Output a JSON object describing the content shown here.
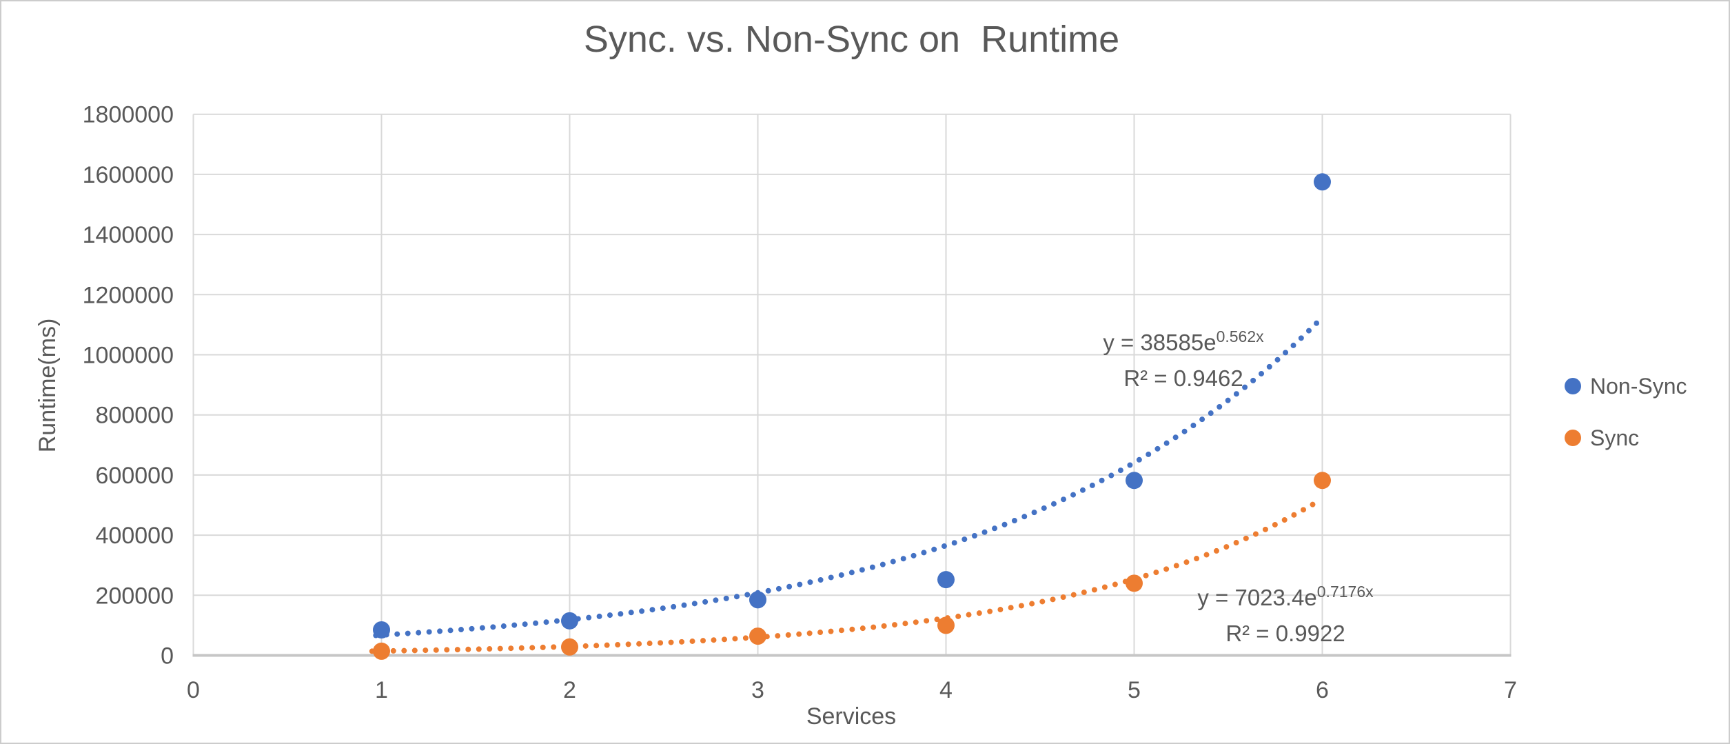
{
  "title": "Sync. vs. Non-Sync on  Runtime",
  "colors": {
    "nonsync": "#4472C4",
    "sync": "#ED7D31",
    "gridline": "#D9D9D9",
    "axis_line": "#C6C6C6",
    "text": "#595959"
  },
  "legend": {
    "position": "right",
    "items": [
      {
        "label": "Non-Sync",
        "color": "#4472C4"
      },
      {
        "label": "Sync",
        "color": "#ED7D31"
      }
    ]
  },
  "annotations": {
    "non_sync": {
      "eq_base": "y = 38585e",
      "eq_exp": "0.562x",
      "r2": "R² = 0.9462"
    },
    "sync": {
      "eq_base": "y = 7023.4e",
      "eq_exp": "0.7176x",
      "r2": "R² = 0.9922"
    }
  },
  "chart_data": {
    "type": "scatter",
    "title": "Sync. vs. Non-Sync on  Runtime",
    "xlabel": "Services",
    "ylabel": "Runtime(ms)",
    "xlim": [
      0,
      7
    ],
    "ylim": [
      0,
      1800000
    ],
    "x_ticks": [
      0,
      1,
      2,
      3,
      4,
      5,
      6,
      7
    ],
    "y_ticks": [
      0,
      200000,
      400000,
      600000,
      800000,
      1000000,
      1200000,
      1400000,
      1600000,
      1800000
    ],
    "grid": true,
    "legend_position": "right",
    "x": [
      1,
      2,
      3,
      4,
      5,
      6
    ],
    "series": [
      {
        "name": "Non-Sync",
        "color": "#4472C4",
        "values": [
          85000,
          115000,
          185000,
          252000,
          582000,
          1575000
        ],
        "trendline": {
          "type": "exponential",
          "a": 38585,
          "b": 0.562,
          "r2": 0.9462,
          "x_start": 0.97,
          "x_end": 6.0
        }
      },
      {
        "name": "Sync",
        "color": "#ED7D31",
        "values": [
          14000,
          28000,
          64000,
          100000,
          240000,
          582000
        ],
        "trendline": {
          "type": "exponential",
          "a": 7023.4,
          "b": 0.7176,
          "r2": 0.9922,
          "x_start": 0.95,
          "x_end": 6.0
        }
      }
    ]
  }
}
